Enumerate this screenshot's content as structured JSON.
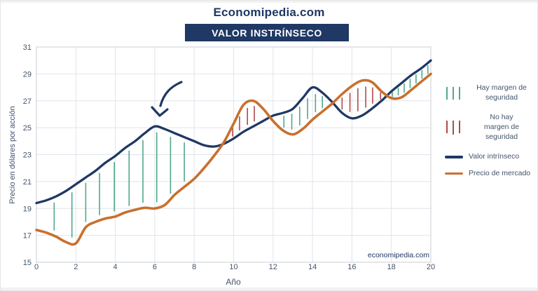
{
  "header": {
    "site_title": "Economipedia.com",
    "banner_title": "VALOR INSTRÍNSECO"
  },
  "watermark": "economipedia.com",
  "axes": {
    "y_title": "Precio en dólares por acción",
    "x_title": "Año"
  },
  "legend": [
    {
      "label": "Hay margen de seguridad",
      "swatch": "green-hatch"
    },
    {
      "label": "No hay margen de seguridad",
      "swatch": "red-hatch"
    },
    {
      "label": "Valor intrínseco",
      "swatch": "navy-line"
    },
    {
      "label": "Precio de mercado",
      "swatch": "orange-line"
    }
  ],
  "colors": {
    "navy": "#1f3864",
    "orange": "#c8702d",
    "green_hatch": "#4fa98a",
    "red_hatch": "#ad4b47",
    "grid": "#e0e4ea",
    "plot_border": "#c9ced6",
    "axis_text": "#44546a"
  },
  "chart_data": {
    "type": "line",
    "title": "VALOR INSTRÍNSECO",
    "xlabel": "Año",
    "ylabel": "Precio en dólares por acción",
    "xlim": [
      0,
      20
    ],
    "ylim": [
      15,
      31
    ],
    "x_ticks": [
      0,
      2,
      4,
      6,
      8,
      10,
      12,
      14,
      16,
      18,
      20
    ],
    "y_ticks": [
      15,
      17,
      19,
      21,
      23,
      25,
      27,
      29,
      31
    ],
    "grid": true,
    "legend_position": "right",
    "x": [
      0,
      0.5,
      1,
      1.5,
      2,
      2.5,
      3,
      3.5,
      4,
      4.5,
      5,
      5.5,
      6,
      6.5,
      7,
      7.5,
      8,
      8.5,
      9,
      9.5,
      10,
      10.5,
      11,
      11.5,
      12,
      12.5,
      13,
      13.5,
      14,
      14.5,
      15,
      15.5,
      16,
      16.5,
      17,
      17.5,
      18,
      18.5,
      19,
      19.5,
      20
    ],
    "series": [
      {
        "name": "Valor intrínseco",
        "color": "#1f3864",
        "values": [
          19.4,
          19.6,
          19.9,
          20.3,
          20.8,
          21.3,
          21.8,
          22.4,
          22.9,
          23.5,
          24.0,
          24.6,
          25.1,
          24.9,
          24.6,
          24.3,
          24.0,
          23.7,
          23.6,
          23.8,
          24.2,
          24.7,
          25.1,
          25.5,
          25.9,
          26.1,
          26.4,
          27.2,
          28.0,
          27.6,
          26.9,
          26.1,
          25.7,
          25.9,
          26.4,
          27.0,
          27.7,
          28.3,
          28.9,
          29.4,
          30.0
        ]
      },
      {
        "name": "Precio de mercado",
        "color": "#c8702d",
        "values": [
          17.4,
          17.2,
          16.9,
          16.5,
          16.4,
          17.6,
          18.0,
          18.25,
          18.4,
          18.7,
          18.9,
          19.05,
          19.0,
          19.25,
          20.0,
          20.6,
          21.2,
          22.0,
          22.9,
          23.9,
          25.3,
          26.7,
          27.0,
          26.4,
          25.5,
          24.8,
          24.5,
          24.9,
          25.6,
          26.2,
          26.8,
          27.5,
          28.1,
          28.5,
          28.4,
          27.7,
          27.2,
          27.25,
          27.8,
          28.4,
          29.0
        ]
      }
    ],
    "margin_hatches": {
      "green_xs": [
        0.9,
        1.8,
        2.5,
        3.2,
        3.95,
        4.7,
        5.4,
        6.1,
        6.8,
        7.5,
        12.55,
        12.95,
        13.35,
        13.75,
        14.15,
        14.5,
        18.05,
        18.35,
        18.65,
        18.95,
        19.25,
        19.55,
        19.85
      ],
      "red_xs": [
        9.6,
        9.95,
        10.3,
        10.7,
        11.05,
        15.5,
        15.9,
        16.3,
        16.7,
        17.05,
        17.45
      ]
    },
    "annotation": {
      "arrow_points_to": {
        "x": 6,
        "y": 25
      }
    }
  }
}
